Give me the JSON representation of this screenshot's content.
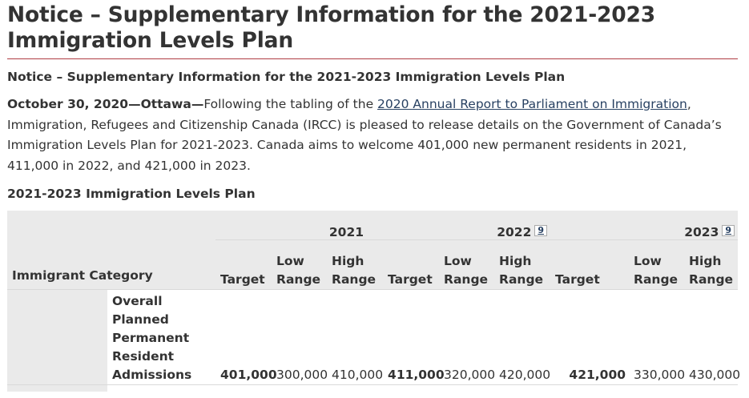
{
  "page": {
    "title": "Notice – Supplementary Information for the 2021-2023 Immigration Levels Plan",
    "notice_heading": "Notice – Supplementary Information for the 2021-2023 Immigration Levels Plan"
  },
  "intro": {
    "dateline": "October 30, 2020—Ottawa",
    "dash": "—",
    "text_before_link": "Following the tabling of the ",
    "link_text": "2020 Annual Report to Parliament on Immigration",
    "text_after_link": ", Immigration, Refugees and Citizenship Canada (IRCC) is pleased to release details on the Government of Canada’s Immigration Levels Plan for 2021-2023. Canada aims to welcome 401,000 new permanent residents in 2021, 411,000 in 2022, and 421,000 in 2023."
  },
  "table": {
    "caption": "2021-2023 Immigration Levels Plan",
    "category_header": "Immigrant Category",
    "years": [
      {
        "label": "2021",
        "footnote": ""
      },
      {
        "label": "2022",
        "footnote": "9"
      },
      {
        "label": "2023",
        "footnote": "9"
      }
    ],
    "sub_headers": {
      "target": "Target",
      "low_1": "Low",
      "low_2": "Range",
      "high_1": "High",
      "high_2": "Range"
    },
    "rows": [
      {
        "category": "Overall Planned Permanent Resident Admissions",
        "y2021": {
          "target": "401,000",
          "low": "300,000",
          "high": "410,000"
        },
        "y2022": {
          "target": "411,000",
          "low": "320,000",
          "high": "420,000"
        },
        "y2023": {
          "target": "421,000",
          "low": "330,000",
          "high": "430,000"
        }
      }
    ]
  }
}
